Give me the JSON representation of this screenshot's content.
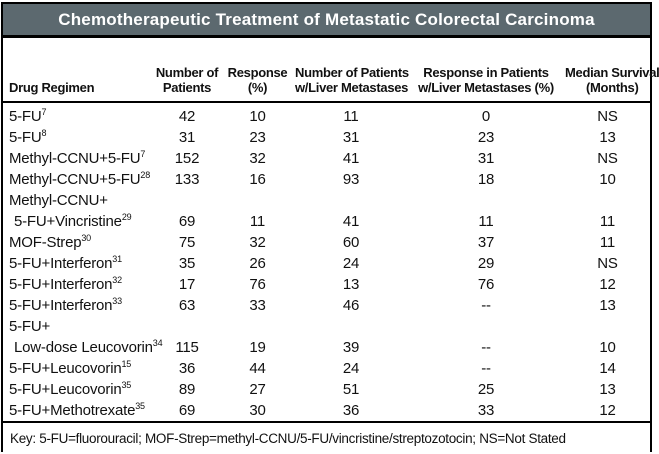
{
  "title": "Chemotherapeutic Treatment of Metastatic Colorectal Carcinoma",
  "colors": {
    "title_bar_background": "#5c696f",
    "title_text": "#ffffff",
    "border": "#000000",
    "body_text": "#111111",
    "background": "#ffffff"
  },
  "table": {
    "columns": [
      {
        "lines": [
          "Drug Regimen"
        ],
        "align": "left"
      },
      {
        "lines": [
          "Number of",
          "Patients"
        ],
        "align": "center"
      },
      {
        "lines": [
          "Response",
          "(%)"
        ],
        "align": "center"
      },
      {
        "lines": [
          "Number of Patients",
          "w/Liver Metastases"
        ],
        "align": "center"
      },
      {
        "lines": [
          "Response in Patients",
          "w/Liver Metastases (%)"
        ],
        "align": "center"
      },
      {
        "lines": [
          "Median Survival",
          "(Months)"
        ],
        "align": "center"
      }
    ],
    "rows": [
      {
        "name": "5-FU",
        "ref": "7",
        "values": [
          "42",
          "10",
          "11",
          "0",
          "NS"
        ]
      },
      {
        "name": "5-FU",
        "ref": "8",
        "values": [
          "31",
          "23",
          "31",
          "23",
          "13"
        ]
      },
      {
        "name": "Methyl-CCNU+5-FU",
        "ref": "7",
        "values": [
          "152",
          "32",
          "41",
          "31",
          "NS"
        ]
      },
      {
        "name": "Methyl-CCNU+5-FU",
        "ref": "28",
        "values": [
          "133",
          "16",
          "93",
          "18",
          "10"
        ]
      },
      {
        "pre": "Methyl-CCNU+",
        "name": "5-FU+Vincristine",
        "ref": "29",
        "indent": true,
        "values": [
          "69",
          "11",
          "41",
          "11",
          "11"
        ]
      },
      {
        "name": "MOF-Strep",
        "ref": "30",
        "values": [
          "75",
          "32",
          "60",
          "37",
          "11"
        ]
      },
      {
        "name": "5-FU+Interferon",
        "ref": "31",
        "values": [
          "35",
          "26",
          "24",
          "29",
          "NS"
        ]
      },
      {
        "name": "5-FU+Interferon",
        "ref": "32",
        "values": [
          "17",
          "76",
          "13",
          "76",
          "12"
        ]
      },
      {
        "name": "5-FU+Interferon",
        "ref": "33",
        "values": [
          "63",
          "33",
          "46",
          "--",
          "13"
        ]
      },
      {
        "pre": "5-FU+",
        "name": "Low-dose Leucovorin",
        "ref": "34",
        "indent": true,
        "values": [
          "115",
          "19",
          "39",
          "--",
          "10"
        ]
      },
      {
        "name": "5-FU+Leucovorin",
        "ref": "15",
        "values": [
          "36",
          "44",
          "24",
          "--",
          "14"
        ]
      },
      {
        "name": "5-FU+Leucovorin",
        "ref": "35",
        "values": [
          "89",
          "27",
          "51",
          "25",
          "13"
        ]
      },
      {
        "name": "5-FU+Methotrexate",
        "ref": "35",
        "values": [
          "69",
          "30",
          "36",
          "33",
          "12"
        ]
      }
    ]
  },
  "key": "Key: 5-FU=fluorouracil; MOF-Strep=methyl-CCNU/5-FU/vincristine/streptozotocin; NS=Not Stated"
}
